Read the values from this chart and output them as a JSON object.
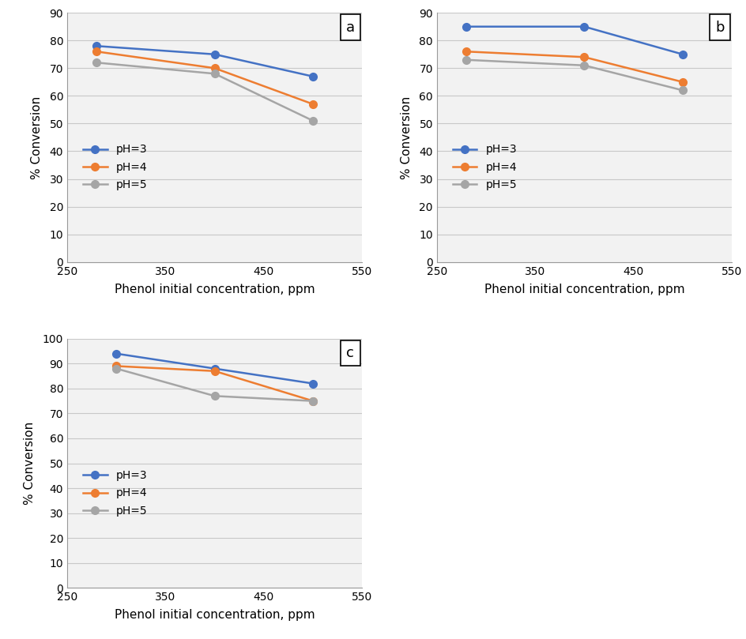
{
  "subplot_a": {
    "label": "a",
    "x": [
      280,
      400,
      500
    ],
    "pH3": [
      78,
      75,
      67
    ],
    "pH4": [
      76,
      70,
      57
    ],
    "pH5": [
      72,
      68,
      51
    ],
    "ylim": [
      0,
      90
    ],
    "yticks": [
      0,
      10,
      20,
      30,
      40,
      50,
      60,
      70,
      80,
      90
    ],
    "xlim": [
      250,
      550
    ],
    "xticks": [
      250,
      350,
      450,
      550
    ]
  },
  "subplot_b": {
    "label": "b",
    "x": [
      280,
      400,
      500
    ],
    "pH3": [
      85,
      85,
      75
    ],
    "pH4": [
      76,
      74,
      65
    ],
    "pH5": [
      73,
      71,
      62
    ],
    "ylim": [
      0,
      90
    ],
    "yticks": [
      0,
      10,
      20,
      30,
      40,
      50,
      60,
      70,
      80,
      90
    ],
    "xlim": [
      250,
      550
    ],
    "xticks": [
      250,
      350,
      450,
      550
    ]
  },
  "subplot_c": {
    "label": "c",
    "x": [
      300,
      400,
      500
    ],
    "pH3": [
      94,
      88,
      82
    ],
    "pH4": [
      89,
      87,
      75
    ],
    "pH5": [
      88,
      77,
      75
    ],
    "ylim": [
      0,
      100
    ],
    "yticks": [
      0,
      10,
      20,
      30,
      40,
      50,
      60,
      70,
      80,
      90,
      100
    ],
    "xlim": [
      250,
      550
    ],
    "xticks": [
      250,
      350,
      450,
      550
    ]
  },
  "color_pH3": "#4472C4",
  "color_pH4": "#ED7D31",
  "color_pH5": "#A5A5A5",
  "xlabel": "Phenol initial concentration, ppm",
  "ylabel": "% Conversion",
  "legend_labels": [
    "pH=3",
    "pH=4",
    "pH=5"
  ],
  "marker": "o",
  "markersize": 7,
  "linewidth": 1.8,
  "label_fontsize": 11,
  "tick_fontsize": 10,
  "legend_fontsize": 10,
  "grid_color": "#C8C8C8",
  "plot_bg_color": "#F2F2F2",
  "background_color": "#FFFFFF"
}
